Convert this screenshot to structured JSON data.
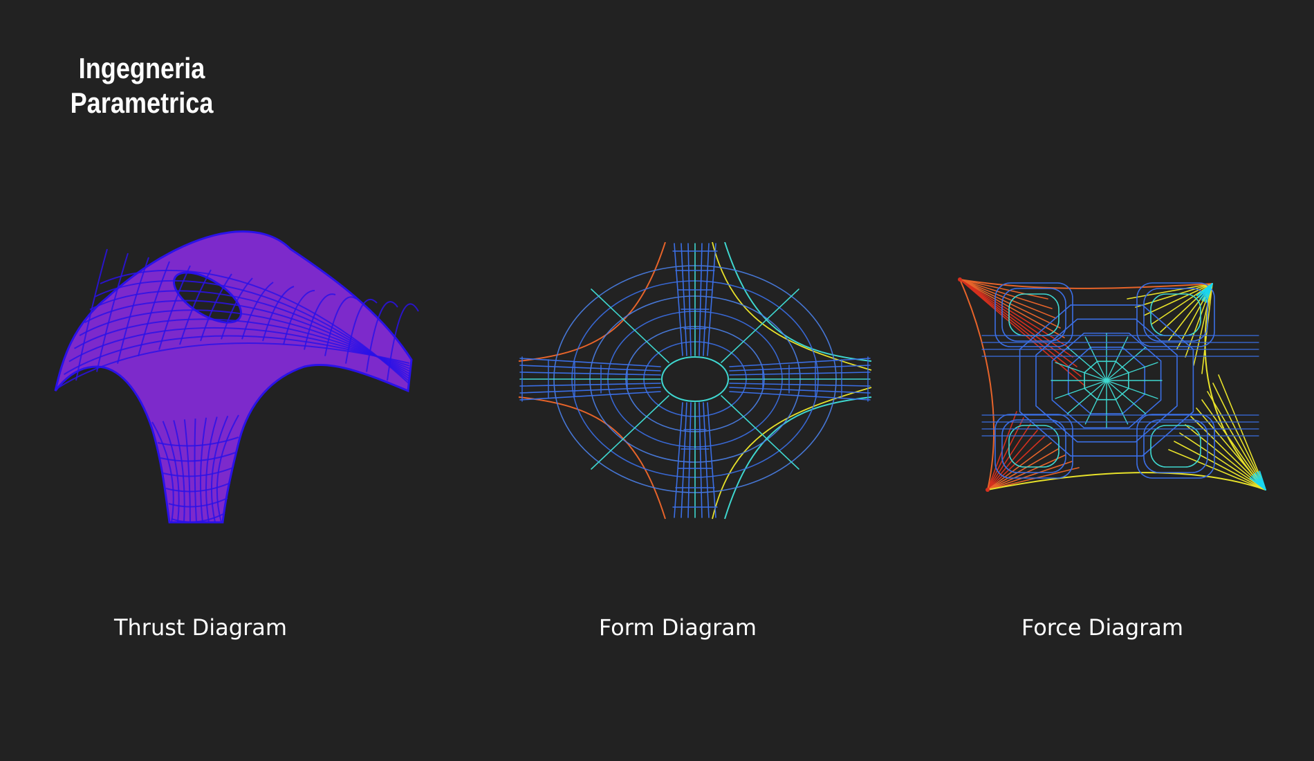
{
  "brand": {
    "line1": "Ingegneria",
    "line2": "Parametrica"
  },
  "diagrams": {
    "thrust": {
      "label": "Thrust Diagram"
    },
    "form": {
      "label": "Form Diagram"
    },
    "force": {
      "label": "Force Diagram"
    }
  },
  "colors": {
    "background": "#222222",
    "text": "#ffffff",
    "thrust_fill": "#8a2be2",
    "thrust_mesh": "#2a12e8",
    "mesh_blue": "#3b6fe6",
    "mesh_cyan": "#3fd8d0",
    "mesh_yellow": "#e8e22a",
    "mesh_orange": "#e8642a",
    "mesh_red": "#d6301e",
    "vertex_cyan": "#19d6f0"
  }
}
